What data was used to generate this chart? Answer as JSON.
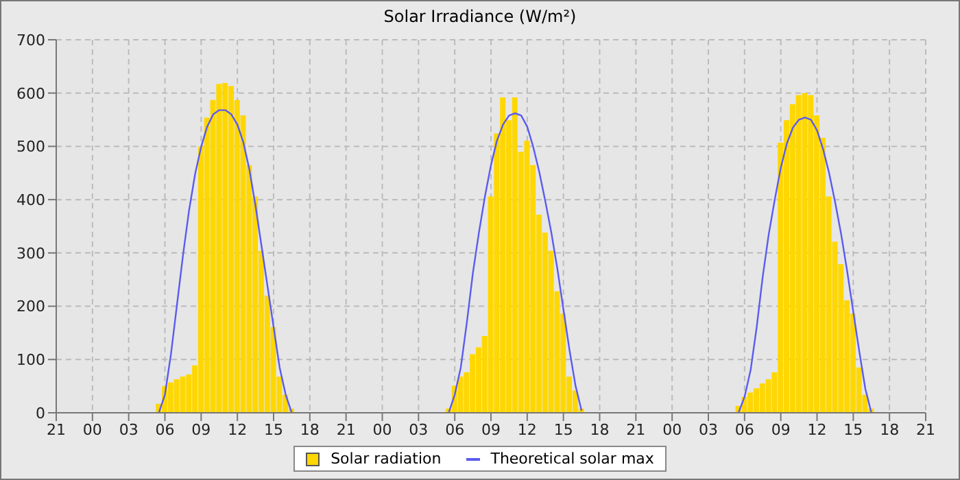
{
  "chart_data": {
    "type": "bar",
    "title": "Solar Irradiance (W/m²)",
    "xlim": [
      "--01-01T21:00",
      "--01-04T21:00"
    ],
    "ylim": [
      0,
      700
    ],
    "yticks": [
      0,
      100,
      200,
      300,
      400,
      500,
      600,
      700
    ],
    "xticks": [
      {
        "value": "--01-01T21:00",
        "label": "21"
      },
      {
        "value": "--01-02T00:00",
        "label": "00"
      },
      {
        "value": "--01-02T03:00",
        "label": "03"
      },
      {
        "value": "--01-02T06:00",
        "label": "06"
      },
      {
        "value": "--01-02T09:00",
        "label": "09"
      },
      {
        "value": "--01-02T12:00",
        "label": "12"
      },
      {
        "value": "--01-02T15:00",
        "label": "15"
      },
      {
        "value": "--01-02T18:00",
        "label": "18"
      },
      {
        "value": "--01-02T21:00",
        "label": "21"
      },
      {
        "value": "--01-03T00:00",
        "label": "00"
      },
      {
        "value": "--01-03T03:00",
        "label": "03"
      },
      {
        "value": "--01-03T06:00",
        "label": "06"
      },
      {
        "value": "--01-03T09:00",
        "label": "09"
      },
      {
        "value": "--01-03T12:00",
        "label": "12"
      },
      {
        "value": "--01-03T15:00",
        "label": "15"
      },
      {
        "value": "--01-03T18:00",
        "label": "18"
      },
      {
        "value": "--01-03T21:00",
        "label": "21"
      },
      {
        "value": "--01-04T00:00",
        "label": "00"
      },
      {
        "value": "--01-04T03:00",
        "label": "03"
      },
      {
        "value": "--01-04T06:00",
        "label": "06"
      },
      {
        "value": "--01-04T09:00",
        "label": "09"
      },
      {
        "value": "--01-04T12:00",
        "label": "12"
      },
      {
        "value": "--01-04T15:00",
        "label": "15"
      },
      {
        "value": "--01-04T18:00",
        "label": "18"
      },
      {
        "value": "--01-04T21:00",
        "label": "21"
      }
    ],
    "grid": true,
    "legend": "bottom",
    "marker": "none",
    "series": [
      {
        "name": "Solar radiation",
        "color": "#ffd700",
        "x": [
          "--01-02T05:00",
          "--01-02T05:30",
          "--01-02T06:00",
          "--01-02T06:30",
          "--01-02T07:00",
          "--01-02T07:30",
          "--01-02T08:00",
          "--01-02T08:30",
          "--01-02T09:00",
          "--01-02T09:30",
          "--01-02T10:00",
          "--01-02T10:30",
          "--01-02T11:00",
          "--01-02T11:30",
          "--01-02T12:00",
          "--01-02T12:30",
          "--01-02T13:00",
          "--01-02T13:30",
          "--01-02T14:00",
          "--01-02T14:30",
          "--01-02T15:00",
          "--01-02T15:30",
          "--01-02T16:00",
          "--01-02T16:30",
          "--01-02T17:00",
          "--01-03T05:00",
          "--01-03T05:30",
          "--01-03T06:00",
          "--01-03T06:30",
          "--01-03T07:00",
          "--01-03T07:30",
          "--01-03T08:00",
          "--01-03T08:30",
          "--01-03T09:00",
          "--01-03T09:30",
          "--01-03T10:00",
          "--01-03T10:30",
          "--01-03T11:00",
          "--01-03T11:30",
          "--01-03T12:00",
          "--01-03T12:30",
          "--01-03T13:00",
          "--01-03T13:30",
          "--01-03T14:00",
          "--01-03T14:30",
          "--01-03T15:00",
          "--01-03T15:30",
          "--01-03T16:00",
          "--01-03T16:30",
          "--01-03T17:00",
          "--01-04T05:00",
          "--01-04T05:30",
          "--01-04T06:00",
          "--01-04T06:30",
          "--01-04T07:00",
          "--01-04T07:30",
          "--01-04T08:00",
          "--01-04T08:30",
          "--01-04T09:00",
          "--01-04T09:30",
          "--01-04T10:00",
          "--01-04T10:30",
          "--01-04T11:00",
          "--01-04T11:30",
          "--01-04T12:00",
          "--01-04T12:30",
          "--01-04T13:00",
          "--01-04T13:30",
          "--01-04T14:00",
          "--01-04T14:30",
          "--01-04T15:00",
          "--01-04T15:30",
          "--01-04T16:00",
          "--01-04T16:30",
          "--01-04T17:00"
        ],
        "values": [
          0,
          17,
          50,
          57,
          63,
          68,
          72,
          89,
          500,
          554,
          587,
          617,
          619,
          613,
          587,
          558,
          465,
          406,
          304,
          220,
          161,
          68,
          34,
          8,
          0,
          0,
          8,
          51,
          68,
          76,
          110,
          123,
          144,
          406,
          524,
          592,
          549,
          592,
          490,
          511,
          465,
          372,
          338,
          304,
          228,
          186,
          68,
          42,
          8,
          0,
          0,
          13,
          30,
          38,
          46,
          55,
          63,
          76,
          507,
          549,
          579,
          596,
          600,
          596,
          558,
          516,
          406,
          321,
          279,
          211,
          186,
          85,
          34,
          8,
          0
        ]
      },
      {
        "name": "Theoretical solar max",
        "type": "line",
        "color": "#5b5bf0",
        "x": [
          "--01-02T05:30",
          "--01-02T06:00",
          "--01-02T06:30",
          "--01-02T07:00",
          "--01-02T07:30",
          "--01-02T08:00",
          "--01-02T08:30",
          "--01-02T09:00",
          "--01-02T09:30",
          "--01-02T10:00",
          "--01-02T10:30",
          "--01-02T11:00",
          "--01-02T11:30",
          "--01-02T12:00",
          "--01-02T12:30",
          "--01-02T13:00",
          "--01-02T13:30",
          "--01-02T14:00",
          "--01-02T14:30",
          "--01-02T15:00",
          "--01-02T15:30",
          "--01-02T16:00",
          "--01-02T16:30",
          "--01-03T05:30",
          "--01-03T06:00",
          "--01-03T06:30",
          "--01-03T07:00",
          "--01-03T07:30",
          "--01-03T08:00",
          "--01-03T08:30",
          "--01-03T09:00",
          "--01-03T09:30",
          "--01-03T10:00",
          "--01-03T10:30",
          "--01-03T11:00",
          "--01-03T11:30",
          "--01-03T12:00",
          "--01-03T12:30",
          "--01-03T13:00",
          "--01-03T13:30",
          "--01-03T14:00",
          "--01-03T14:30",
          "--01-03T15:00",
          "--01-03T15:30",
          "--01-03T16:00",
          "--01-03T16:30",
          "--01-04T05:30",
          "--01-04T06:00",
          "--01-04T06:30",
          "--01-04T07:00",
          "--01-04T07:30",
          "--01-04T08:00",
          "--01-04T08:30",
          "--01-04T09:00",
          "--01-04T09:30",
          "--01-04T10:00",
          "--01-04T10:30",
          "--01-04T11:00",
          "--01-04T11:30",
          "--01-04T12:00",
          "--01-04T12:30",
          "--01-04T13:00",
          "--01-04T13:30",
          "--01-04T14:00",
          "--01-04T14:30",
          "--01-04T15:00",
          "--01-04T15:30",
          "--01-04T16:00",
          "--01-04T16:30"
        ],
        "values": [
          0,
          34,
          110,
          203,
          296,
          380,
          448,
          499,
          537,
          560,
          568,
          568,
          560,
          541,
          507,
          456,
          389,
          313,
          237,
          161,
          85,
          34,
          0,
          0,
          34,
          85,
          169,
          262,
          338,
          406,
          465,
          511,
          541,
          558,
          562,
          558,
          537,
          499,
          452,
          397,
          338,
          270,
          194,
          118,
          51,
          4,
          0,
          30,
          80,
          160,
          255,
          335,
          400,
          460,
          505,
          535,
          550,
          554,
          550,
          530,
          495,
          450,
          395,
          335,
          265,
          190,
          115,
          45,
          0
        ]
      }
    ]
  }
}
